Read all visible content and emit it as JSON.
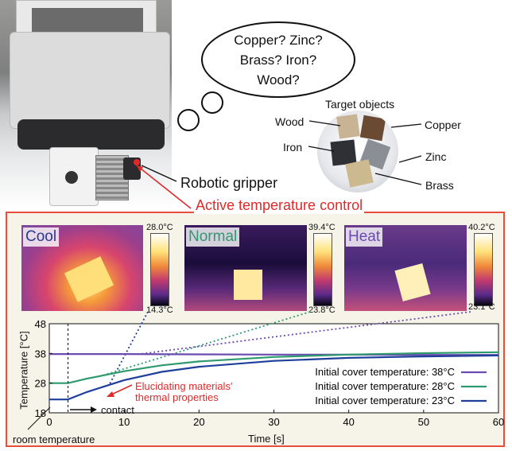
{
  "thought": {
    "text": "Copper? Zinc?\nBrass? Iron?\nWood?"
  },
  "objects": {
    "title": "Target objects",
    "labels": [
      "Wood",
      "Copper",
      "Iron",
      "Zinc",
      "Brass"
    ]
  },
  "gripper_label": "Robotic gripper",
  "control_label": "Active temperature control",
  "thermal_images": [
    {
      "mode": "Cool",
      "max": "28.0°C",
      "min": "14.3°C",
      "color": "#2a3a8a"
    },
    {
      "mode": "Normal",
      "max": "39.4°C",
      "min": "23.8°C",
      "color": "#2e9a6e"
    },
    {
      "mode": "Heat",
      "max": "40.2°C",
      "min": "23.1°C",
      "color": "#6a4bb0"
    }
  ],
  "annotations": {
    "properties": "Elucidating materials'\nthermal properties",
    "contact": "contact",
    "room": "room temperature"
  },
  "chart_data": {
    "type": "line",
    "xlabel": "Time [s]",
    "ylabel": "Temperature [°C]",
    "xlim": [
      0,
      60
    ],
    "ylim": [
      18,
      48
    ],
    "xticks": [
      "0",
      "10",
      "20",
      "30",
      "40",
      "50",
      "60"
    ],
    "yticks": [
      "18",
      "28",
      "38",
      "48"
    ],
    "contact_time": 2.5,
    "series": [
      {
        "name": "Initial cover temperature: 38°C",
        "color": "#6a4bb0",
        "x": [
          0,
          2.5,
          10,
          20,
          30,
          40,
          50,
          60
        ],
        "y": [
          37.8,
          37.8,
          37.8,
          37.7,
          37.6,
          37.6,
          37.5,
          37.5
        ]
      },
      {
        "name": "Initial cover temperature: 28°C",
        "color": "#2e9a6e",
        "x": [
          0,
          2.5,
          5,
          10,
          15,
          20,
          30,
          40,
          50,
          60
        ],
        "y": [
          28.0,
          28.0,
          29.5,
          32.0,
          34.0,
          35.3,
          36.8,
          37.6,
          38.1,
          38.4
        ]
      },
      {
        "name": "Initial cover temperature: 23°C",
        "color": "#1e3f9a",
        "x": [
          0,
          2.5,
          5,
          10,
          15,
          20,
          30,
          40,
          50,
          60
        ],
        "y": [
          22.5,
          22.5,
          25.0,
          29.0,
          31.8,
          33.5,
          35.5,
          36.5,
          37.0,
          37.3
        ]
      }
    ]
  }
}
